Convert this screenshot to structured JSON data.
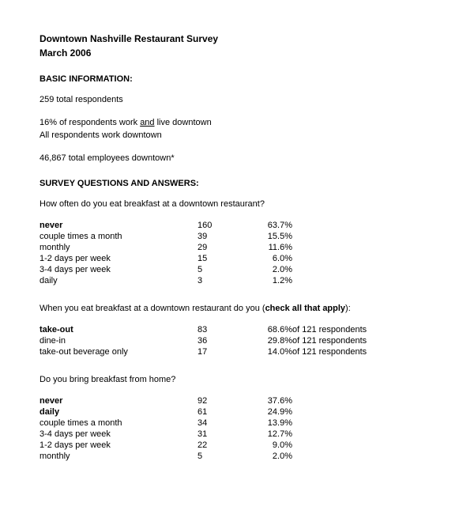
{
  "title": {
    "line1": "Downtown Nashville Restaurant Survey",
    "line2": "March 2006"
  },
  "sections": {
    "basic_info_heading": "BASIC INFORMATION:",
    "qa_heading": "SURVEY QUESTIONS AND ANSWERS:"
  },
  "basic_info": {
    "respondents_line": "259 total respondents",
    "pct_line_before": "16% of respondents work ",
    "pct_line_underlined": "and",
    "pct_line_after": " live downtown",
    "all_line": "All respondents work downtown",
    "employees_line": "46,867 total employees downtown*"
  },
  "q1": {
    "question": "How often do you eat breakfast at a downtown restaurant?",
    "rows": [
      {
        "label": "never",
        "count": "160",
        "pct": "63.7%",
        "bold": true
      },
      {
        "label": "couple times a month",
        "count": "39",
        "pct": "15.5%",
        "bold": false
      },
      {
        "label": "monthly",
        "count": "29",
        "pct": "11.6%",
        "bold": false
      },
      {
        "label": "1-2 days per week",
        "count": "15",
        "pct": "6.0%",
        "bold": false
      },
      {
        "label": "3-4 days per week",
        "count": "5",
        "pct": "2.0%",
        "bold": false
      },
      {
        "label": "daily",
        "count": "3",
        "pct": "1.2%",
        "bold": false
      }
    ]
  },
  "q2": {
    "question_before": "When you eat breakfast at a downtown restaurant do you (",
    "question_bold": "check all that apply",
    "question_after": "):",
    "rows": [
      {
        "label": "take-out",
        "count": "83",
        "pct": "68.6%",
        "extra": "of 121 respondents",
        "bold": true
      },
      {
        "label": "dine-in",
        "count": "36",
        "pct": "29.8%",
        "extra": "of 121 respondents",
        "bold": false
      },
      {
        "label": "take-out beverage only",
        "count": "17",
        "pct": "14.0%",
        "extra": "of 121 respondents",
        "bold": false
      }
    ]
  },
  "q3": {
    "question": "Do you bring breakfast from home?",
    "rows": [
      {
        "label": "never",
        "count": "92",
        "pct": "37.6%",
        "bold": true
      },
      {
        "label": "daily",
        "count": "61",
        "pct": "24.9%",
        "bold": true
      },
      {
        "label": "couple times a month",
        "count": "34",
        "pct": "13.9%",
        "bold": false
      },
      {
        "label": "3-4 days per week",
        "count": "31",
        "pct": "12.7%",
        "bold": false
      },
      {
        "label": "1-2 days per week",
        "count": "22",
        "pct": "9.0%",
        "bold": false
      },
      {
        "label": "monthly",
        "count": "5",
        "pct": "2.0%",
        "bold": false
      }
    ]
  }
}
